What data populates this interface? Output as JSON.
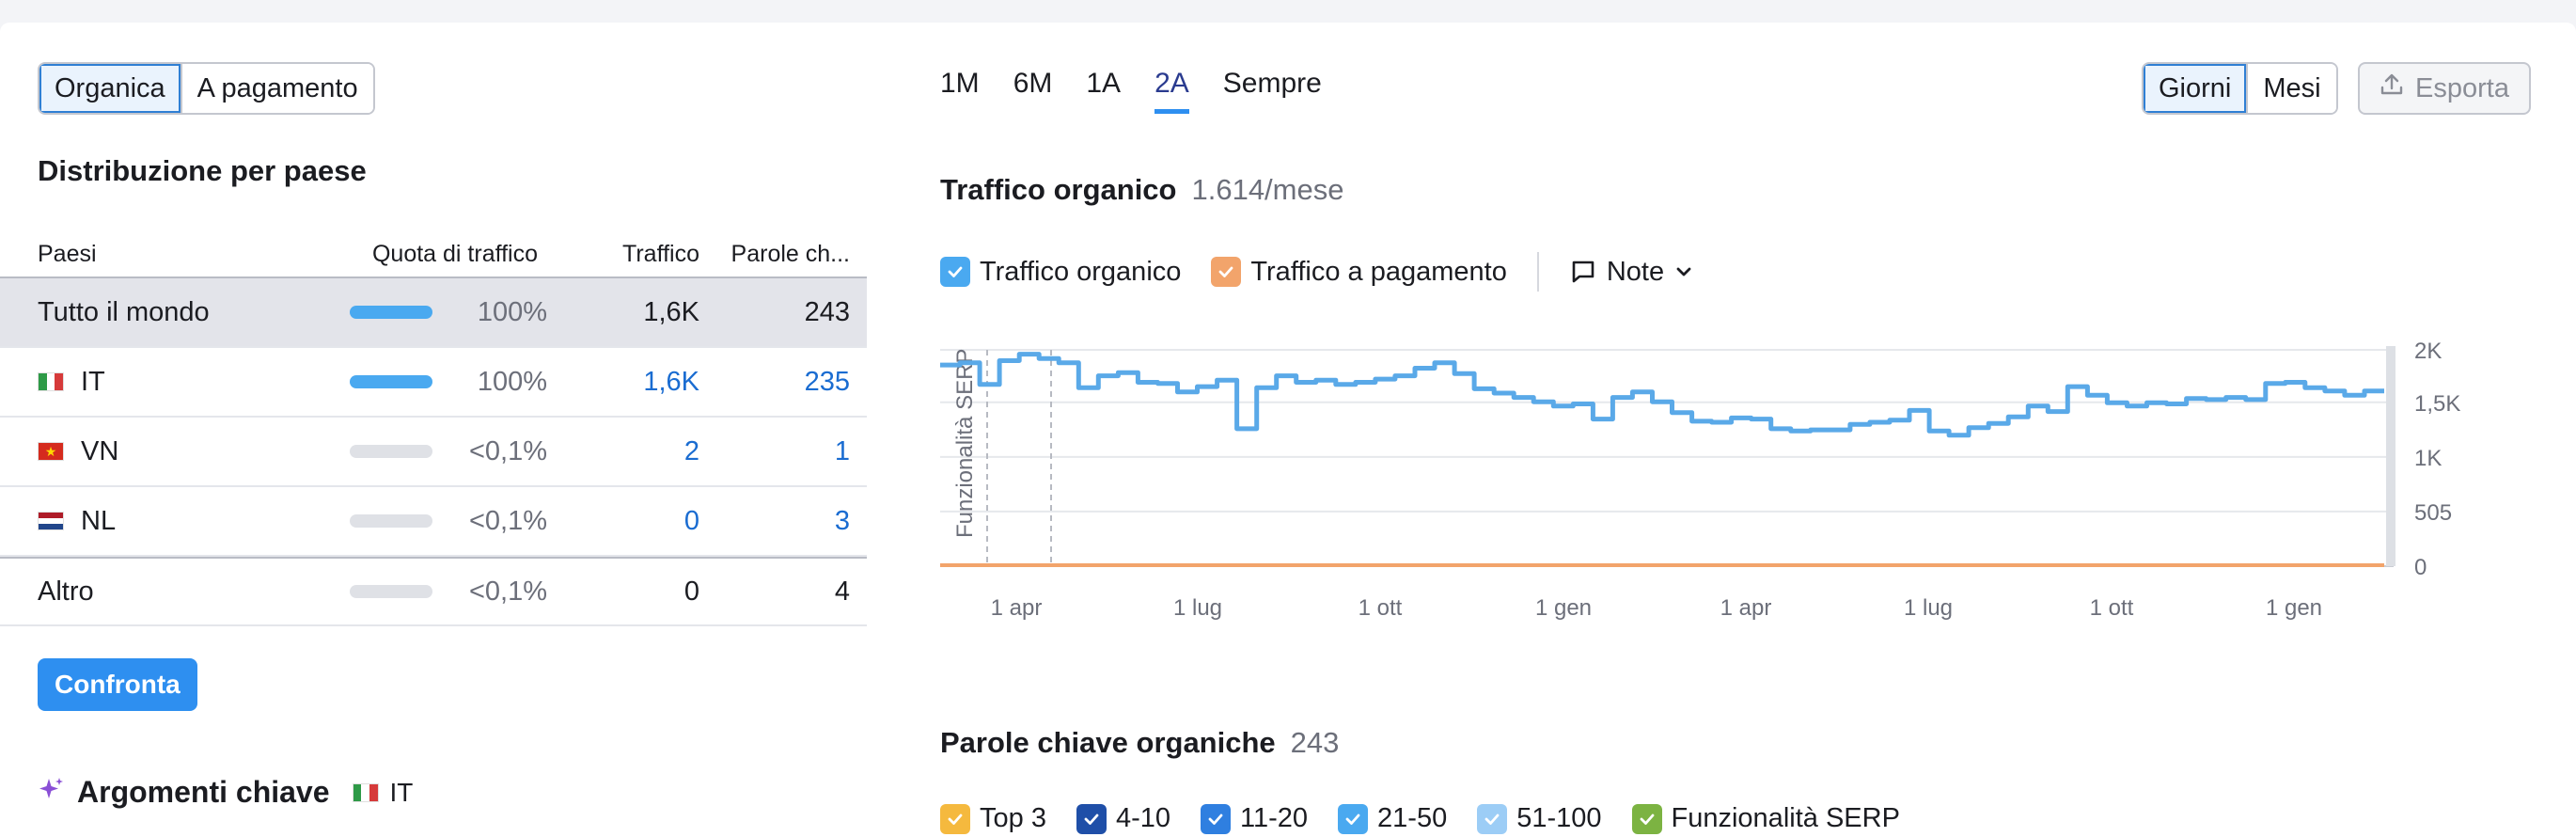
{
  "left": {
    "tabs": [
      {
        "label": "Organica",
        "active": true
      },
      {
        "label": "A pagamento",
        "active": false
      }
    ],
    "distribution_title": "Distribuzione per paese",
    "table": {
      "headers": {
        "country": "Paesi",
        "share": "Quota di traffico",
        "traffic": "Traffico",
        "keywords": "Parole ch..."
      },
      "rows": [
        {
          "country": "Tutto il mondo",
          "share": "100%",
          "share_fraction": 1.0,
          "traffic": "1,6K",
          "keywords": "243",
          "flag": ""
        },
        {
          "country": "IT",
          "share": "100%",
          "share_fraction": 1.0,
          "traffic": "1,6K",
          "keywords": "235",
          "flag": "it"
        },
        {
          "country": "VN",
          "share": "<0,1%",
          "share_fraction": 0.0,
          "traffic": "2",
          "keywords": "1",
          "flag": "vn"
        },
        {
          "country": "NL",
          "share": "<0,1%",
          "share_fraction": 0.0,
          "traffic": "0",
          "keywords": "3",
          "flag": "nl"
        },
        {
          "country": "Altro",
          "share": "<0,1%",
          "share_fraction": 0.0,
          "traffic": "0",
          "keywords": "4",
          "flag": ""
        }
      ]
    },
    "compare_label": "Confronta",
    "topics_title": "Argomenti chiave",
    "topics_country": "IT"
  },
  "right": {
    "periods": [
      {
        "label": "1M",
        "active": false
      },
      {
        "label": "6M",
        "active": false
      },
      {
        "label": "1A",
        "active": false
      },
      {
        "label": "2A",
        "active": true
      },
      {
        "label": "Sempre",
        "active": false
      }
    ],
    "granularity": [
      {
        "label": "Giorni",
        "active": true
      },
      {
        "label": "Mesi",
        "active": false
      }
    ],
    "export_label": "Esporta",
    "traffic_title": "Traffico organico",
    "traffic_value": "1.614/mese",
    "legend": {
      "organic": "Traffico organico",
      "paid": "Traffico a pagamento",
      "notes": "Note"
    },
    "keywords_title": "Parole chiave organiche",
    "keywords_value": "243",
    "kw_legend": [
      {
        "label": "Top 3",
        "color": "#f5b93e"
      },
      {
        "label": "4-10",
        "color": "#1f4fa8"
      },
      {
        "label": "11-20",
        "color": "#2f7fe0"
      },
      {
        "label": "21-50",
        "color": "#4aa9f0"
      },
      {
        "label": "51-100",
        "color": "#9ccdf6"
      },
      {
        "label": "Funzionalità SERP",
        "color": "#7cb342"
      }
    ]
  },
  "chart_data": {
    "type": "line",
    "title": "Traffico organico",
    "x_ticks": [
      "1 apr",
      "1 lug",
      "1 ott",
      "1 gen",
      "1 apr",
      "1 lug",
      "1 ott",
      "1 gen"
    ],
    "y_ticks": [
      "0",
      "505",
      "1K",
      "1,5K",
      "2K"
    ],
    "ylim": [
      0,
      2000
    ],
    "annotation": "Funzionalità SERP",
    "series": [
      {
        "name": "Traffico organico",
        "color": "#5aa9e8",
        "values": [
          1860,
          1880,
          1680,
          1900,
          1960,
          1920,
          1880,
          1650,
          1760,
          1790,
          1700,
          1690,
          1610,
          1660,
          1720,
          1270,
          1650,
          1760,
          1700,
          1720,
          1680,
          1700,
          1730,
          1760,
          1830,
          1880,
          1780,
          1640,
          1600,
          1560,
          1520,
          1480,
          1500,
          1360,
          1560,
          1610,
          1520,
          1420,
          1340,
          1330,
          1370,
          1360,
          1270,
          1250,
          1260,
          1260,
          1310,
          1330,
          1350,
          1440,
          1250,
          1210,
          1280,
          1320,
          1380,
          1480,
          1430,
          1660,
          1580,
          1510,
          1480,
          1510,
          1500,
          1550,
          1540,
          1560,
          1540,
          1690,
          1700,
          1650,
          1620,
          1580,
          1620
        ]
      },
      {
        "name": "Traffico a pagamento",
        "color": "#f2a46b",
        "values": [
          0,
          0
        ]
      }
    ],
    "grid": true
  }
}
